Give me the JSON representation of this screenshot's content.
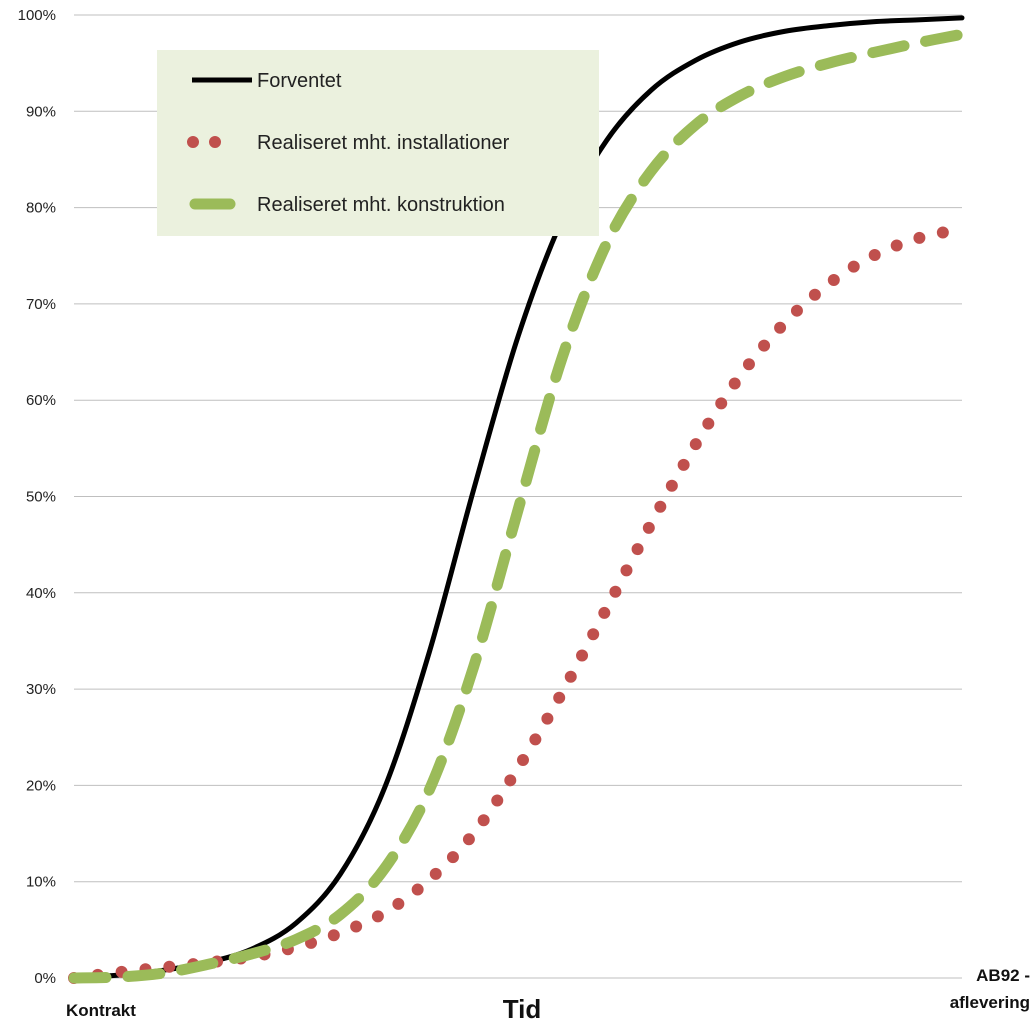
{
  "chart_data": {
    "type": "line",
    "xlabel": "Tid",
    "ylabel": "",
    "x_tick_labels": [
      {
        "x": 0,
        "lines": [
          "Kontrakt"
        ]
      },
      {
        "x": 100,
        "lines": [
          "AB92 -",
          "aflevering"
        ]
      }
    ],
    "x_range": [
      0,
      100
    ],
    "ylim": [
      0,
      100
    ],
    "y_ticks": [
      0,
      10,
      20,
      30,
      40,
      50,
      60,
      70,
      80,
      90,
      100
    ],
    "y_tick_format": "{v}%",
    "grid": true,
    "legend_position": "top-left",
    "series": [
      {
        "name": "Forventet",
        "style": "solid",
        "color": "#000000",
        "x": [
          0,
          5,
          10,
          15,
          20,
          25,
          30,
          35,
          40,
          45,
          50,
          55,
          60,
          65,
          70,
          75,
          80,
          85,
          90,
          95,
          100
        ],
        "y": [
          0.0,
          0.3,
          0.8,
          1.6,
          3.0,
          5.7,
          10.8,
          19.8,
          33.8,
          50.7,
          66.6,
          78.8,
          87.0,
          92.2,
          95.3,
          97.2,
          98.3,
          98.9,
          99.3,
          99.5,
          99.7
        ]
      },
      {
        "name": "Realiseret mht. installationer",
        "style": "dotted",
        "color": "#C0504D",
        "x": [
          0,
          5,
          10,
          15,
          20,
          25,
          30,
          35,
          40,
          45,
          50,
          55,
          60,
          65,
          70,
          75,
          80,
          85,
          90,
          95,
          100
        ],
        "y": [
          0.0,
          0.6,
          1.1,
          1.6,
          2.2,
          3.2,
          4.7,
          6.8,
          10.2,
          15.0,
          21.8,
          29.7,
          38.4,
          47.2,
          55.4,
          62.5,
          68.0,
          72.1,
          75.0,
          76.8,
          77.8
        ]
      },
      {
        "name": "Realiseret mht. konstruktion",
        "style": "dashed",
        "color": "#9BBB59",
        "x": [
          0,
          5,
          10,
          15,
          20,
          25,
          30,
          35,
          40,
          45,
          50,
          55,
          60,
          65,
          70,
          75,
          80,
          85,
          90,
          95,
          100
        ],
        "y": [
          0.0,
          0.1,
          0.5,
          1.4,
          2.5,
          4.0,
          6.6,
          11.4,
          19.5,
          32.3,
          48.6,
          64.5,
          76.3,
          83.8,
          88.6,
          91.6,
          93.6,
          95.0,
          96.1,
          97.1,
          98.0
        ]
      }
    ],
    "colors": {
      "gridline": "#BFBFBF",
      "legend_background": "#EBF1DE"
    }
  }
}
